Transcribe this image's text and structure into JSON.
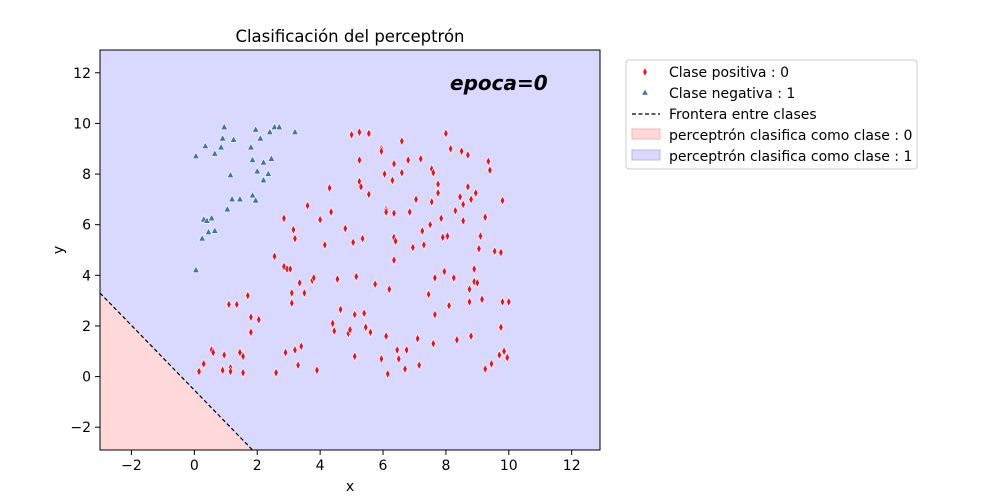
{
  "chart_data": {
    "type": "scatter",
    "title": "Clasificación del perceptrón",
    "xlabel": "x",
    "ylabel": "y",
    "xlim": [
      -3,
      12.9
    ],
    "ylim": [
      -2.9,
      12.9
    ],
    "xticks": [
      -2,
      0,
      2,
      4,
      6,
      8,
      10,
      12
    ],
    "yticks": [
      -2,
      0,
      2,
      4,
      6,
      8,
      10,
      12
    ],
    "xtick_labels": [
      "−2",
      "0",
      "2",
      "4",
      "6",
      "8",
      "10",
      "12"
    ],
    "ytick_labels": [
      "−2",
      "0",
      "2",
      "4",
      "6",
      "8",
      "10",
      "12"
    ],
    "grid": false,
    "legend_position": "outside-top-right",
    "annotation": "epoca=0",
    "annotation_color": "#800080",
    "boundary": {
      "name": "Frontera entre clases",
      "points": [
        [
          -3,
          3.3
        ],
        [
          1.85,
          -2.9
        ]
      ],
      "color": "#000000",
      "style": "dashed"
    },
    "regions": [
      {
        "name": "perceptrón clasifica como clase : 0",
        "color": "#ffd9d9"
      },
      {
        "name": "perceptrón clasifica como clase : 1",
        "color": "#d9d9ff"
      }
    ],
    "series": [
      {
        "name": "Clase positiva : 0",
        "marker": "diamond",
        "color": "#e8141b",
        "points": [
          [
            0.15,
            0.2
          ],
          [
            0.3,
            0.5
          ],
          [
            0.55,
            1.05
          ],
          [
            0.6,
            0.95
          ],
          [
            0.95,
            0.85
          ],
          [
            0.9,
            0.25
          ],
          [
            1.15,
            0.35
          ],
          [
            1.15,
            0.2
          ],
          [
            1.45,
            0.95
          ],
          [
            1.55,
            0.8
          ],
          [
            1.55,
            0.15
          ],
          [
            1.7,
            3.2
          ],
          [
            1.8,
            2.35
          ],
          [
            1.8,
            1.75
          ],
          [
            1.1,
            2.85
          ],
          [
            1.35,
            2.85
          ],
          [
            2.05,
            2.25
          ],
          [
            2.55,
            4.75
          ],
          [
            2.6,
            0.15
          ],
          [
            2.85,
            6.25
          ],
          [
            2.85,
            4.35
          ],
          [
            2.9,
            0.95
          ],
          [
            2.95,
            4.25
          ],
          [
            3.05,
            4.25
          ],
          [
            3.1,
            3.3
          ],
          [
            3.1,
            2.9
          ],
          [
            3.15,
            5.8
          ],
          [
            3.2,
            5.45
          ],
          [
            3.2,
            1.05
          ],
          [
            3.3,
            0.45
          ],
          [
            3.35,
            3.7
          ],
          [
            3.4,
            1.2
          ],
          [
            3.5,
            3.3
          ],
          [
            3.6,
            6.75
          ],
          [
            3.75,
            3.8
          ],
          [
            3.8,
            3.9
          ],
          [
            3.9,
            0.25
          ],
          [
            4.0,
            6.2
          ],
          [
            4.15,
            5.2
          ],
          [
            4.3,
            7.45
          ],
          [
            4.35,
            6.5
          ],
          [
            4.4,
            2.1
          ],
          [
            4.45,
            1.8
          ],
          [
            4.55,
            3.85
          ],
          [
            4.65,
            2.65
          ],
          [
            4.8,
            5.85
          ],
          [
            4.9,
            1.7
          ],
          [
            4.95,
            1.85
          ],
          [
            5.0,
            9.55
          ],
          [
            5.05,
            5.3
          ],
          [
            5.1,
            2.45
          ],
          [
            5.1,
            0.8
          ],
          [
            5.15,
            3.95
          ],
          [
            5.25,
            9.65
          ],
          [
            5.25,
            8.55
          ],
          [
            5.25,
            7.7
          ],
          [
            5.3,
            7.5
          ],
          [
            5.35,
            5.45
          ],
          [
            5.4,
            2.5
          ],
          [
            5.45,
            1.95
          ],
          [
            5.55,
            9.6
          ],
          [
            5.55,
            7.2
          ],
          [
            5.6,
            1.75
          ],
          [
            5.75,
            3.65
          ],
          [
            5.95,
            9.0
          ],
          [
            5.95,
            8.9
          ],
          [
            5.95,
            0.7
          ],
          [
            6.05,
            8.0
          ],
          [
            6.1,
            6.6
          ],
          [
            6.1,
            6.5
          ],
          [
            6.1,
            1.6
          ],
          [
            6.15,
            0.1
          ],
          [
            6.2,
            3.45
          ],
          [
            6.3,
            7.75
          ],
          [
            6.35,
            8.4
          ],
          [
            6.35,
            6.45
          ],
          [
            6.35,
            5.5
          ],
          [
            6.35,
            4.6
          ],
          [
            6.4,
            5.35
          ],
          [
            6.45,
            1.05
          ],
          [
            6.5,
            0.7
          ],
          [
            6.6,
            8.05
          ],
          [
            6.6,
            9.3
          ],
          [
            6.7,
            0.3
          ],
          [
            6.75,
            1.05
          ],
          [
            6.8,
            8.55
          ],
          [
            6.85,
            6.5
          ],
          [
            6.95,
            5.1
          ],
          [
            7.05,
            7.0
          ],
          [
            7.1,
            1.5
          ],
          [
            7.15,
            0.45
          ],
          [
            7.2,
            8.6
          ],
          [
            7.25,
            5.75
          ],
          [
            7.3,
            5.2
          ],
          [
            7.45,
            3.25
          ],
          [
            7.5,
            6.0
          ],
          [
            7.55,
            8.2
          ],
          [
            7.55,
            6.9
          ],
          [
            7.6,
            8.05
          ],
          [
            7.6,
            1.3
          ],
          [
            7.65,
            3.9
          ],
          [
            7.65,
            2.45
          ],
          [
            7.75,
            7.6
          ],
          [
            7.75,
            7.25
          ],
          [
            7.85,
            6.25
          ],
          [
            7.9,
            5.5
          ],
          [
            7.95,
            4.15
          ],
          [
            8.0,
            9.6
          ],
          [
            8.05,
            5.55
          ],
          [
            8.1,
            2.8
          ],
          [
            8.15,
            9.0
          ],
          [
            8.25,
            3.9
          ],
          [
            8.3,
            6.55
          ],
          [
            8.35,
            1.45
          ],
          [
            8.45,
            7.1
          ],
          [
            8.5,
            8.9
          ],
          [
            8.55,
            6.8
          ],
          [
            8.55,
            6.15
          ],
          [
            8.7,
            7.5
          ],
          [
            8.7,
            8.75
          ],
          [
            8.75,
            3.45
          ],
          [
            8.75,
            2.95
          ],
          [
            8.8,
            1.6
          ],
          [
            8.8,
            7.0
          ],
          [
            8.9,
            4.25
          ],
          [
            8.9,
            3.75
          ],
          [
            8.95,
            7.25
          ],
          [
            9.0,
            3.7
          ],
          [
            9.05,
            5.05
          ],
          [
            9.1,
            5.55
          ],
          [
            9.15,
            3.05
          ],
          [
            9.25,
            6.3
          ],
          [
            9.25,
            0.3
          ],
          [
            9.35,
            8.5
          ],
          [
            9.4,
            8.15
          ],
          [
            9.45,
            0.5
          ],
          [
            9.55,
            4.95
          ],
          [
            9.7,
            0.85
          ],
          [
            9.75,
            4.9
          ],
          [
            9.75,
            1.95
          ],
          [
            9.8,
            6.95
          ],
          [
            9.8,
            2.95
          ],
          [
            9.85,
            1.0
          ],
          [
            9.95,
            0.75
          ],
          [
            10.0,
            2.95
          ]
        ]
      },
      {
        "name": "Clase negativa : 1",
        "marker": "triangle",
        "color": "#3b76a8",
        "points": [
          [
            0.05,
            4.2
          ],
          [
            0.05,
            8.7
          ],
          [
            0.25,
            5.45
          ],
          [
            0.3,
            6.2
          ],
          [
            0.35,
            9.1
          ],
          [
            0.4,
            6.15
          ],
          [
            0.45,
            5.7
          ],
          [
            0.55,
            6.25
          ],
          [
            0.65,
            5.75
          ],
          [
            0.65,
            8.8
          ],
          [
            0.85,
            9.05
          ],
          [
            0.9,
            9.4
          ],
          [
            0.95,
            9.85
          ],
          [
            1.05,
            6.6
          ],
          [
            1.15,
            7.95
          ],
          [
            1.2,
            7.0
          ],
          [
            1.25,
            9.35
          ],
          [
            1.45,
            7.0
          ],
          [
            1.8,
            9.05
          ],
          [
            1.85,
            7.15
          ],
          [
            1.85,
            8.55
          ],
          [
            1.95,
            9.75
          ],
          [
            1.95,
            6.95
          ],
          [
            2.0,
            8.1
          ],
          [
            2.1,
            9.4
          ],
          [
            2.2,
            8.45
          ],
          [
            2.2,
            7.75
          ],
          [
            2.35,
            8.0
          ],
          [
            2.4,
            9.65
          ],
          [
            2.45,
            8.6
          ],
          [
            2.55,
            9.85
          ],
          [
            2.7,
            9.85
          ],
          [
            3.2,
            9.65
          ]
        ]
      }
    ]
  }
}
